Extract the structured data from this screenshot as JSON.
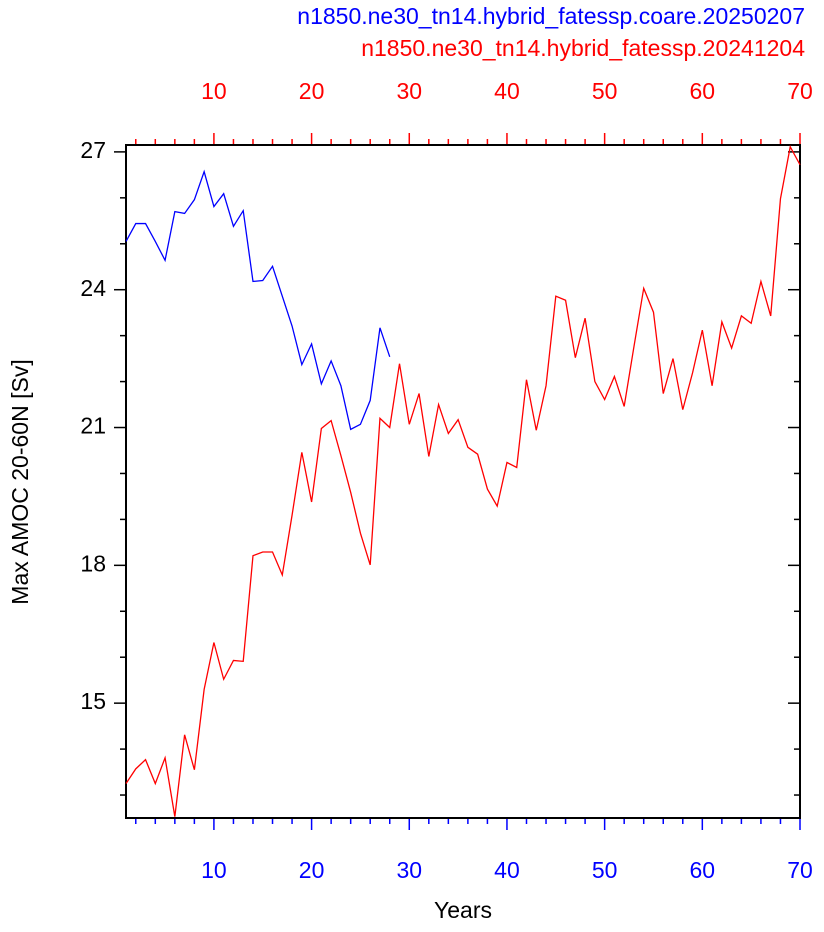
{
  "chart_data": {
    "type": "line",
    "title": "n1850.ne30_tn14.hybrid_fatessp.coare.20250207",
    "subtitle": "n1850.ne30_tn14.hybrid_fatessp.20241204",
    "xlabel": "Years",
    "ylabel": "Max AMOC 20-60N [Sv]",
    "xlim": [
      1,
      70
    ],
    "xticks": [
      10,
      20,
      30,
      40,
      50,
      60,
      70
    ],
    "x_minor_ticks": [
      2,
      4,
      6,
      8,
      12,
      14,
      16,
      18,
      22,
      24,
      26,
      28,
      32,
      34,
      36,
      38,
      42,
      44,
      46,
      48,
      52,
      54,
      56,
      58,
      62,
      64,
      66,
      68
    ],
    "x2lim": [
      1,
      70
    ],
    "x2ticks": [
      10,
      20,
      30,
      40,
      50,
      60,
      70
    ],
    "x2_minor_ticks": [
      2,
      4,
      6,
      8,
      12,
      14,
      16,
      18,
      22,
      24,
      26,
      28,
      32,
      34,
      36,
      38,
      42,
      44,
      46,
      48,
      52,
      54,
      56,
      58,
      62,
      64,
      66,
      68
    ],
    "ylim": [
      12.5,
      27.15
    ],
    "yticks": [
      15,
      18,
      21,
      24,
      27
    ],
    "y_minor_ticks": [
      13,
      14,
      16,
      17,
      19,
      20,
      22,
      23,
      25,
      26
    ],
    "series": [
      {
        "name": "n1850.ne30_tn14.hybrid_fatessp.coare.20250207",
        "color": "#0000ff",
        "axis": "x",
        "x": [
          1,
          2,
          3,
          4,
          5,
          6,
          7,
          8,
          9,
          10,
          11,
          12,
          13,
          14,
          15,
          16,
          17,
          18,
          19,
          20,
          21,
          22,
          23,
          24,
          25,
          26,
          27,
          28
        ],
        "values": [
          25.05,
          25.44,
          25.44,
          25.05,
          24.64,
          25.7,
          25.66,
          25.96,
          26.57,
          25.81,
          26.09,
          25.38,
          25.72,
          24.18,
          24.2,
          24.51,
          23.86,
          23.21,
          22.37,
          22.82,
          21.95,
          22.45,
          21.91,
          20.96,
          21.07,
          21.59,
          23.17,
          22.54
        ]
      },
      {
        "name": "n1850.ne30_tn14.hybrid_fatessp.20241204",
        "color": "#ff0000",
        "axis": "x2",
        "x": [
          1,
          2,
          3,
          4,
          5,
          6,
          7,
          8,
          9,
          10,
          11,
          12,
          13,
          14,
          15,
          16,
          17,
          18,
          19,
          20,
          21,
          22,
          23,
          24,
          25,
          26,
          27,
          28,
          29,
          30,
          31,
          32,
          33,
          34,
          35,
          36,
          37,
          38,
          39,
          40,
          41,
          42,
          43,
          44,
          45,
          46,
          47,
          48,
          49,
          50,
          51,
          52,
          53,
          54,
          55,
          56,
          57,
          58,
          59,
          60,
          61,
          62,
          63,
          64,
          65,
          66,
          67,
          68,
          69,
          70
        ],
        "values": [
          13.25,
          13.57,
          13.77,
          13.25,
          13.81,
          12.53,
          14.31,
          13.55,
          15.3,
          16.32,
          15.52,
          15.93,
          15.91,
          18.21,
          18.29,
          18.29,
          17.79,
          19.09,
          20.46,
          19.38,
          20.98,
          21.15,
          20.39,
          19.59,
          18.7,
          18.01,
          21.2,
          21.0,
          22.39,
          21.07,
          21.74,
          20.37,
          21.5,
          20.87,
          21.17,
          20.57,
          20.42,
          19.66,
          19.29,
          20.24,
          20.13,
          22.04,
          20.94,
          21.91,
          23.86,
          23.77,
          22.52,
          23.38,
          22.0,
          21.61,
          22.11,
          21.46,
          22.76,
          24.03,
          23.51,
          21.74,
          22.5,
          21.39,
          22.19,
          23.12,
          21.91,
          23.3,
          22.73,
          23.43,
          23.27,
          24.18,
          23.43,
          25.98,
          27.11,
          26.72
        ]
      }
    ]
  }
}
